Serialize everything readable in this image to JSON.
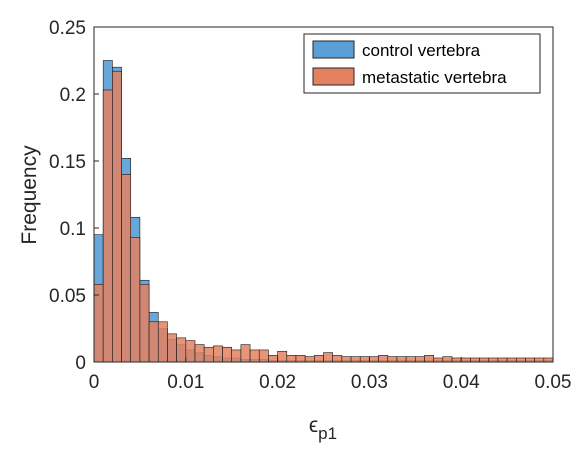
{
  "chart_data": {
    "type": "histogram",
    "xlabel_symbol": "ϵ",
    "xlabel_subscript": "p1",
    "ylabel": "Frequency",
    "xlim": [
      0,
      0.05
    ],
    "ylim": [
      0,
      0.25
    ],
    "bin_width": 0.001,
    "x_ticks": [
      0,
      0.01,
      0.02,
      0.03,
      0.04,
      0.05
    ],
    "x_tick_labels": [
      "0",
      "0.01",
      "0.02",
      "0.03",
      "0.04",
      "0.05"
    ],
    "y_ticks": [
      0,
      0.05,
      0.1,
      0.15,
      0.2,
      0.25
    ],
    "y_tick_labels": [
      "0",
      "0.05",
      "0.1",
      "0.15",
      "0.2",
      "0.25"
    ],
    "grid": false,
    "legend_position": "top-right",
    "series": [
      {
        "name": "control vertebra",
        "color": "#5aa0d7",
        "values": [
          0.095,
          0.225,
          0.22,
          0.152,
          0.108,
          0.061,
          0.037,
          0.025,
          0.017,
          0.013,
          0.009,
          0.007,
          0.005,
          0.004,
          0.003,
          0.003,
          0.002,
          0.002,
          0.002,
          0.001,
          0.001,
          0.001,
          0.001,
          0.001,
          0.001,
          0.001,
          0.001,
          0.001,
          0.001,
          0.001,
          0.001,
          0.001,
          0.001,
          0.001,
          0.001,
          0.001,
          0.001,
          0.001,
          0.001,
          0.001,
          0.001,
          0.001,
          0.001,
          0.001,
          0.001,
          0.001,
          0.001,
          0.001,
          0.001,
          0.001
        ]
      },
      {
        "name": "metastatic vertebra",
        "color": "#e38261",
        "values": [
          0.058,
          0.203,
          0.217,
          0.14,
          0.093,
          0.058,
          0.03,
          0.03,
          0.021,
          0.018,
          0.016,
          0.013,
          0.011,
          0.012,
          0.011,
          0.009,
          0.013,
          0.009,
          0.009,
          0.005,
          0.008,
          0.005,
          0.005,
          0.004,
          0.005,
          0.007,
          0.005,
          0.004,
          0.004,
          0.004,
          0.004,
          0.005,
          0.004,
          0.004,
          0.004,
          0.004,
          0.005,
          0.003,
          0.004,
          0.003,
          0.003,
          0.003,
          0.003,
          0.003,
          0.003,
          0.003,
          0.003,
          0.003,
          0.003,
          0.003
        ]
      }
    ]
  }
}
